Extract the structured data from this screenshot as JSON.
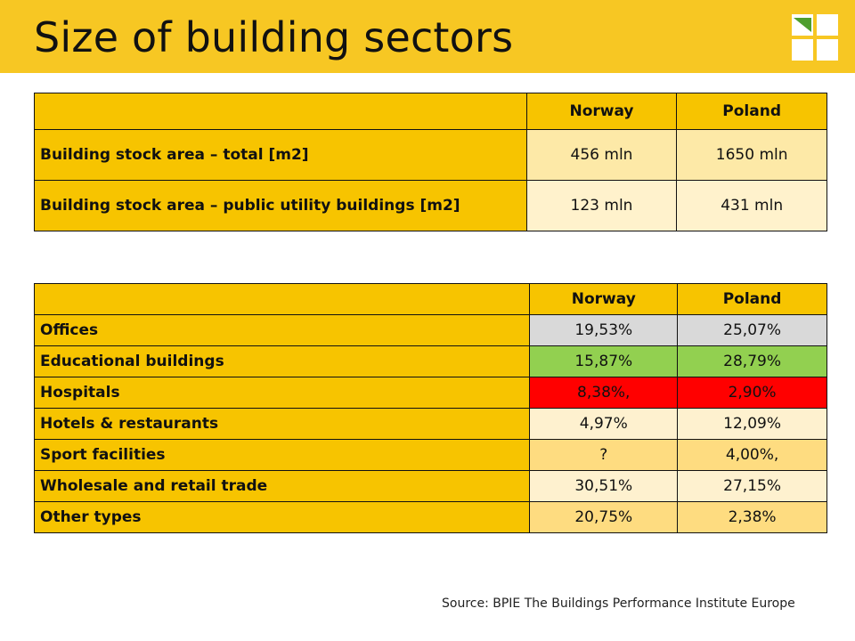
{
  "title": "Size of building sectors",
  "logo": {
    "icon": "checkmark-squares-logo"
  },
  "table1": {
    "headers": [
      "",
      "Norway",
      "Poland"
    ],
    "rows": [
      {
        "label": "Building stock area – total [m2]",
        "norway": "456 mln",
        "poland": "1650 mln"
      },
      {
        "label": "Building stock area – public utility buildings [m2]",
        "norway": "123 mln",
        "poland": "431 mln"
      }
    ]
  },
  "table2": {
    "headers": [
      "",
      "Norway",
      "Poland"
    ],
    "rows": [
      {
        "label": "Offices",
        "norway": "19,53%",
        "poland": "25,07%"
      },
      {
        "label": "Educational buildings",
        "norway": "15,87%",
        "poland": "28,79%"
      },
      {
        "label": "Hospitals",
        "norway": "8,38%,",
        "poland": "2,90%"
      },
      {
        "label": "Hotels & restaurants",
        "norway": "4,97%",
        "poland": "12,09%"
      },
      {
        "label": "Sport facilities",
        "norway": "?",
        "poland": "4,00%,"
      },
      {
        "label": "Wholesale and retail trade",
        "norway": "30,51%",
        "poland": "27,15%"
      },
      {
        "label": "Other types",
        "norway": "20,75%",
        "poland": "2,38%"
      }
    ]
  },
  "colors": {
    "header_bar": "#f7c723",
    "label_cell": "#f7c400",
    "gray": "#d9d9d9",
    "green": "#92d050",
    "red": "#ff0000"
  },
  "source": "Source: BPIE The Buildings Performance Institute Europe"
}
